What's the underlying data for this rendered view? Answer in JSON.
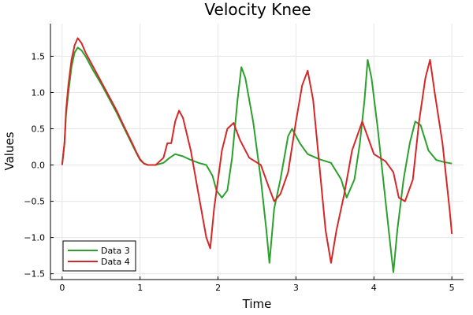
{
  "chart_data": {
    "type": "line",
    "title": "Velocity Knee",
    "xlabel": "Time",
    "ylabel": "Values",
    "xlim": [
      -0.15,
      5.15
    ],
    "ylim": [
      -1.58,
      1.95
    ],
    "xticks": [
      0,
      1,
      2,
      3,
      4,
      5
    ],
    "xtick_labels": [
      "0",
      "1",
      "2",
      "3",
      "4",
      "5"
    ],
    "yticks": [
      -1.5,
      -1.0,
      -0.5,
      0.0,
      0.5,
      1.0,
      1.5
    ],
    "ytick_labels": [
      "−1.5",
      "−1.0",
      "−0.5",
      "0.0",
      "0.5",
      "1.0",
      "1.5"
    ],
    "grid": true,
    "legend_position": "bottom-left",
    "series": [
      {
        "name": "Data 3",
        "color": "#2ca02c",
        "x": [
          0,
          0.03,
          0.05,
          0.08,
          0.12,
          0.16,
          0.2,
          0.25,
          0.3,
          0.4,
          0.5,
          0.6,
          0.7,
          0.8,
          0.9,
          0.95,
          1.0,
          1.05,
          1.1,
          1.2,
          1.3,
          1.38,
          1.45,
          1.55,
          1.65,
          1.75,
          1.85,
          1.93,
          1.98,
          2.05,
          2.12,
          2.18,
          2.25,
          2.3,
          2.35,
          2.45,
          2.55,
          2.62,
          2.66,
          2.72,
          2.8,
          2.9,
          2.95,
          3.05,
          3.15,
          3.3,
          3.45,
          3.58,
          3.65,
          3.75,
          3.82,
          3.88,
          3.92,
          3.97,
          4.05,
          4.15,
          4.22,
          4.25,
          4.3,
          4.38,
          4.46,
          4.53,
          4.6,
          4.7,
          4.8,
          4.9,
          5.0
        ],
        "values": [
          0.0,
          0.3,
          0.7,
          1.0,
          1.35,
          1.55,
          1.62,
          1.58,
          1.5,
          1.3,
          1.12,
          0.92,
          0.72,
          0.5,
          0.28,
          0.17,
          0.07,
          0.02,
          0.0,
          0.0,
          0.03,
          0.1,
          0.15,
          0.12,
          0.07,
          0.03,
          0.0,
          -0.15,
          -0.35,
          -0.45,
          -0.35,
          0.1,
          0.9,
          1.35,
          1.2,
          0.6,
          -0.2,
          -0.9,
          -1.35,
          -0.6,
          -0.2,
          0.4,
          0.5,
          0.3,
          0.15,
          0.08,
          0.03,
          -0.2,
          -0.45,
          -0.2,
          0.3,
          0.9,
          1.45,
          1.2,
          0.5,
          -0.5,
          -1.2,
          -1.48,
          -0.9,
          -0.2,
          0.3,
          0.6,
          0.55,
          0.2,
          0.07,
          0.04,
          0.02
        ]
      },
      {
        "name": "Data 4",
        "color": "#d62728",
        "x": [
          0,
          0.03,
          0.05,
          0.08,
          0.12,
          0.16,
          0.2,
          0.25,
          0.3,
          0.4,
          0.5,
          0.6,
          0.7,
          0.8,
          0.9,
          0.95,
          1.0,
          1.05,
          1.1,
          1.2,
          1.3,
          1.35,
          1.4,
          1.45,
          1.5,
          1.55,
          1.65,
          1.75,
          1.85,
          1.9,
          1.95,
          2.05,
          2.12,
          2.2,
          2.28,
          2.4,
          2.55,
          2.65,
          2.72,
          2.8,
          2.9,
          3.0,
          3.08,
          3.15,
          3.22,
          3.3,
          3.38,
          3.45,
          3.52,
          3.62,
          3.72,
          3.85,
          4.0,
          4.15,
          4.25,
          4.32,
          4.4,
          4.5,
          4.58,
          4.66,
          4.72,
          4.78,
          4.88,
          4.97,
          5.0
        ],
        "values": [
          0.0,
          0.3,
          0.75,
          1.1,
          1.45,
          1.65,
          1.75,
          1.68,
          1.55,
          1.35,
          1.15,
          0.95,
          0.75,
          0.52,
          0.3,
          0.18,
          0.08,
          0.02,
          0.0,
          0.0,
          0.1,
          0.3,
          0.3,
          0.6,
          0.75,
          0.65,
          0.2,
          -0.4,
          -1.0,
          -1.15,
          -0.6,
          0.2,
          0.5,
          0.58,
          0.35,
          0.1,
          0.0,
          -0.3,
          -0.5,
          -0.4,
          -0.1,
          0.6,
          1.1,
          1.3,
          0.9,
          0.0,
          -0.9,
          -1.35,
          -0.9,
          -0.4,
          0.2,
          0.6,
          0.15,
          0.05,
          -0.1,
          -0.45,
          -0.5,
          -0.2,
          0.6,
          1.2,
          1.45,
          1.0,
          0.3,
          -0.6,
          -0.95
        ]
      }
    ]
  }
}
